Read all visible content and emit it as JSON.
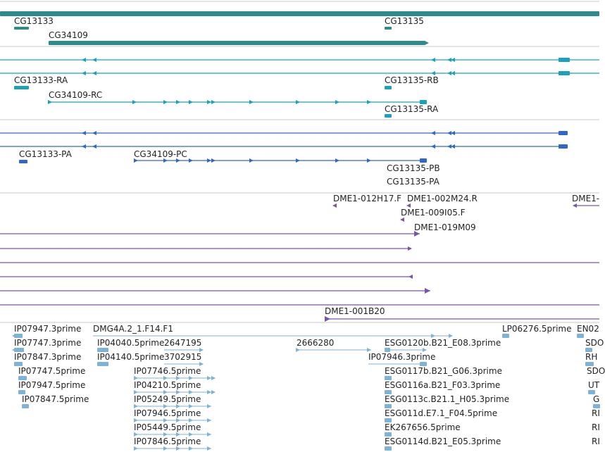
{
  "colors": {
    "gene": "#2e8b8b",
    "transcript": "#1aa3b8",
    "protein": "#3366cc",
    "clone": "#7755aa",
    "est": "#7fb3d5",
    "separator": "#c8c8c8"
  },
  "gene_track": {
    "labels": [
      "CG13133",
      "CG34109",
      "CG13135"
    ]
  },
  "transcript_track": {
    "labels": [
      "CG13133-RA",
      "CG34109-RC",
      "CG13135-RB",
      "CG13135-RA"
    ]
  },
  "protein_track": {
    "labels": [
      "CG13133-PA",
      "CG34109-PC",
      "CG13135-PB",
      "CG13135-PA"
    ]
  },
  "clone_track": {
    "labels": [
      "DME1-012H17.F",
      "DME1-002M24.R",
      "DME1-009I05.F",
      "DME1-019M09",
      "DME1-",
      "DME1-001B20"
    ]
  },
  "est_track": {
    "labels": [
      "IP07947.3prime",
      "DMG4A.2_1.F14.F1",
      "LP06276.5prime",
      "EN02",
      "IP07747.3prime",
      "IP04040.5prime",
      "2647195",
      "2666280",
      "ESG0120b.B21_E08.3prime",
      "SDO",
      "IP07847.3prime",
      "IP04140.5prime",
      "3702915",
      "IP07946.3prime",
      "RH",
      "IP07747.5prime",
      "IP07746.5prime",
      "ESG0117b.B21_G06.3prime",
      "SDO",
      "IP07947.5prime",
      "IP04210.5prime",
      "ESG0116a.B21_F03.3prime",
      "UT",
      "IP07847.5prime",
      "IP05249.5prime",
      "ESG0113c.B21.1_H05.3prime",
      "G",
      "IP07946.5prime",
      "ESG011d.E7.1_F04.5prime",
      "RI",
      "IP05449.5prime",
      "EK267656.5prime",
      "RI",
      "IP07846.5prime",
      "ESG0114d.B21_E05.3prime",
      "RI"
    ]
  }
}
